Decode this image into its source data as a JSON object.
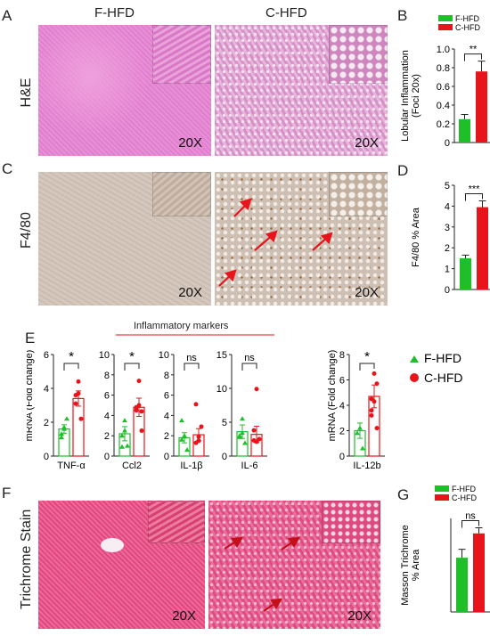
{
  "panel_letters": [
    "A",
    "B",
    "C",
    "D",
    "E",
    "F",
    "G"
  ],
  "columns": {
    "left": "F-HFD",
    "right": "C-HFD"
  },
  "rows": {
    "he": "H&E",
    "f480": "F4/80",
    "trichrome": "Trichrome Stain"
  },
  "magnification": "20X",
  "colors": {
    "fhfd": "#1fbf2a",
    "chfd": "#e8141b",
    "he_bg": "#e384cf",
    "f480_bg": "#cdbfb4",
    "tri_bg": "#e64e86"
  },
  "inflammatory_title": "Inflammatory markers",
  "e_legend": [
    {
      "label": "F-HFD",
      "marker": "triangle"
    },
    {
      "label": "C-HFD",
      "marker": "circle"
    }
  ],
  "chart_data": [
    {
      "id": "B",
      "type": "bar",
      "categories": [
        "F-HFD",
        "C-HFD"
      ],
      "values": [
        0.25,
        0.76
      ],
      "errors": [
        0.05,
        0.11
      ],
      "ylabel": "Lobular Inflammation (Foci 20x)",
      "ylim": [
        0,
        1.0
      ],
      "yticks": [
        "0",
        "0.2",
        "0.4",
        "0.6",
        "0.8",
        "1.0"
      ],
      "significance": "**",
      "legend": [
        "F-HFD",
        "C-HFD"
      ]
    },
    {
      "id": "D",
      "type": "bar",
      "categories": [
        "F-HFD",
        "C-HFD"
      ],
      "values": [
        1.5,
        3.95
      ],
      "errors": [
        0.15,
        0.3
      ],
      "ylabel": "F4/80 % Area",
      "ylim": [
        0,
        5
      ],
      "yticks": [
        "0",
        "1",
        "2",
        "3",
        "4",
        "5"
      ],
      "significance": "***"
    },
    {
      "id": "E",
      "type": "bar",
      "ylabel": "mRNA (Fold change)",
      "subplots": [
        {
          "label": "TNF-α",
          "ylim": [
            0,
            6
          ],
          "yticks": [
            "0",
            "2",
            "4",
            "6"
          ],
          "sig": "*",
          "means": [
            1.6,
            3.4
          ],
          "errors": [
            0.25,
            0.45
          ],
          "points": [
            [
              1.3,
              1.7,
              2.2,
              1.1,
              1.6
            ],
            [
              3.1,
              4.4,
              2.2,
              3.6,
              3.7
            ]
          ]
        },
        {
          "label": "Ccl2",
          "ylim": [
            0,
            10
          ],
          "yticks": [
            "0",
            "2",
            "4",
            "6",
            "8",
            "10"
          ],
          "sig": "*",
          "means": [
            2.2,
            4.8
          ],
          "errors": [
            0.7,
            0.9
          ],
          "points": [
            [
              2.0,
              3.5,
              1.0,
              0.9,
              2.5
            ],
            [
              4.5,
              7.4,
              2.5,
              4.8,
              5.0,
              4.4
            ]
          ]
        },
        {
          "label": "IL-1β",
          "ylim": [
            0,
            10
          ],
          "yticks": [
            "0",
            "2",
            "4",
            "6",
            "8",
            "10"
          ],
          "sig": "ns",
          "means": [
            1.8,
            2.1
          ],
          "errors": [
            0.5,
            0.6
          ],
          "points": [
            [
              1.6,
              1.9,
              0.6,
              3.5,
              2.0
            ],
            [
              1.3,
              1.9,
              2.9,
              5.1,
              1.5
            ]
          ]
        },
        {
          "label": "IL-6",
          "ylim": [
            0,
            15
          ],
          "yticks": [
            "0",
            "5",
            "10",
            "15"
          ],
          "sig": "ns",
          "means": [
            3.6,
            3.2
          ],
          "errors": [
            1.0,
            1.2
          ],
          "points": [
            [
              3.0,
              5.5,
              1.9,
              2.8,
              3.4
            ],
            [
              2.3,
              9.9,
              2.5,
              3.8,
              2.1
            ]
          ]
        },
        {
          "label": "IL-12b",
          "ylim": [
            0,
            8
          ],
          "yticks": [
            "0",
            "2",
            "4",
            "6",
            "8"
          ],
          "sig": "*",
          "means": [
            2.0,
            4.7
          ],
          "errors": [
            0.6,
            0.9
          ],
          "points": [
            [
              1.8,
              2.2,
              0.6
            ],
            [
              4.5,
              6.5,
              2.2,
              3.2,
              4.3,
              5.7,
              3.6
            ]
          ]
        }
      ]
    },
    {
      "id": "G",
      "type": "bar",
      "categories": [
        "F-HFD",
        "C-HFD"
      ],
      "values": [
        5.8,
        8.4
      ],
      "errors": [
        0.9,
        0.6
      ],
      "ylabel": "Masson Trichrome % Area",
      "significance": "ns",
      "legend": [
        "F-HFD",
        "C-HFD"
      ]
    }
  ]
}
